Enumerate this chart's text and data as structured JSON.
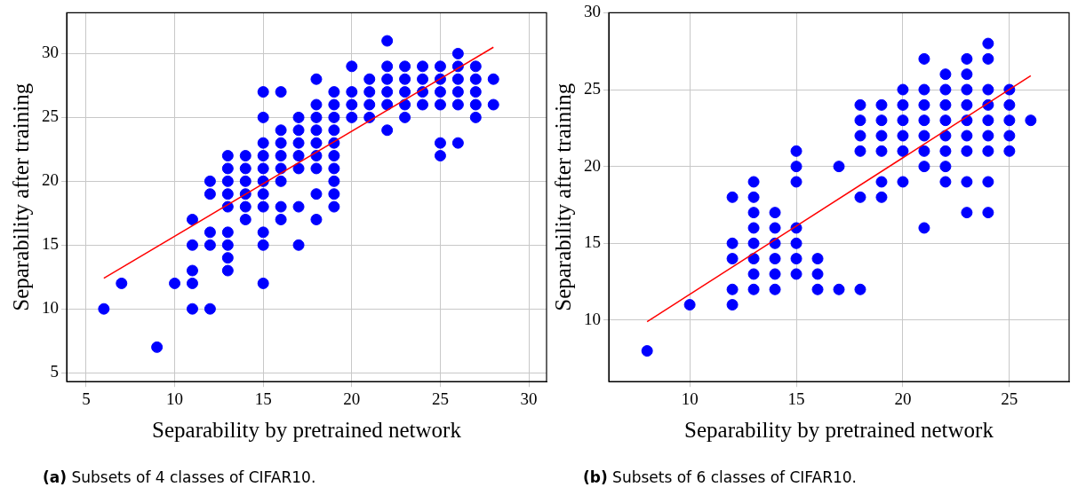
{
  "chart_data": [
    {
      "type": "scatter",
      "xlabel": "Separability by pretrained network",
      "ylabel": "Separability after training",
      "xlim": [
        3.9,
        31
      ],
      "ylim": [
        4.3,
        33.2
      ],
      "xticks": [
        5,
        10,
        15,
        20,
        25,
        30
      ],
      "yticks": [
        5,
        10,
        15,
        20,
        25,
        30
      ],
      "grid": true,
      "marker": "circle",
      "annotations": [
        "(a) Subsets of 4 classes of CIFAR10."
      ],
      "series": [
        {
          "type": "scatter",
          "color": "#0000ff",
          "x": [
            6,
            7,
            9,
            10,
            11,
            11,
            11,
            11,
            11,
            12,
            12,
            12,
            12,
            12,
            13,
            13,
            13,
            13,
            13,
            13,
            13,
            13,
            13,
            14,
            14,
            14,
            14,
            14,
            14,
            15,
            15,
            15,
            15,
            15,
            15,
            15,
            15,
            15,
            15,
            15,
            16,
            16,
            16,
            16,
            16,
            16,
            16,
            16,
            17,
            17,
            17,
            17,
            17,
            17,
            17,
            18,
            18,
            18,
            18,
            18,
            18,
            18,
            18,
            18,
            19,
            19,
            19,
            19,
            19,
            19,
            19,
            19,
            19,
            19,
            20,
            20,
            20,
            20,
            21,
            21,
            21,
            21,
            22,
            22,
            22,
            22,
            22,
            22,
            23,
            23,
            23,
            23,
            23,
            24,
            24,
            24,
            24,
            25,
            25,
            25,
            25,
            25,
            25,
            26,
            26,
            26,
            26,
            26,
            26,
            27,
            27,
            27,
            27,
            27,
            28,
            28
          ],
          "values": [
            10,
            12,
            7,
            12,
            17,
            15,
            13,
            12,
            10,
            20,
            19,
            16,
            15,
            10,
            22,
            21,
            20,
            19,
            18,
            16,
            15,
            14,
            13,
            22,
            21,
            20,
            19,
            18,
            17,
            27,
            25,
            23,
            22,
            21,
            20,
            19,
            18,
            16,
            15,
            12,
            27,
            24,
            23,
            22,
            21,
            20,
            18,
            17,
            25,
            24,
            23,
            22,
            21,
            18,
            15,
            28,
            26,
            25,
            24,
            23,
            22,
            21,
            19,
            17,
            27,
            26,
            25,
            24,
            23,
            22,
            21,
            20,
            19,
            18,
            29,
            27,
            26,
            25,
            28,
            27,
            26,
            25,
            31,
            29,
            28,
            27,
            26,
            24,
            29,
            28,
            27,
            26,
            25,
            29,
            28,
            27,
            26,
            29,
            28,
            27,
            26,
            23,
            22,
            30,
            29,
            28,
            27,
            26,
            23,
            29,
            28,
            27,
            26,
            25,
            28,
            26
          ]
        },
        {
          "type": "line",
          "color": "#ff0000",
          "marker": "none",
          "x": [
            6,
            28
          ],
          "values": [
            12.4,
            30.5
          ]
        }
      ]
    },
    {
      "type": "scatter",
      "xlabel": "Separability by pretrained network",
      "ylabel": "Separability after training",
      "xlim": [
        6.2,
        27.8
      ],
      "ylim": [
        6,
        30
      ],
      "xticks": [
        10,
        15,
        20,
        25
      ],
      "yticks": [
        10,
        15,
        20,
        25,
        30
      ],
      "grid": true,
      "marker": "circle",
      "annotations": [
        "(b) Subsets of 6 classes of CIFAR10."
      ],
      "series": [
        {
          "type": "scatter",
          "color": "#0000ff",
          "x": [
            8,
            10,
            12,
            12,
            12,
            12,
            12,
            13,
            13,
            13,
            13,
            13,
            13,
            13,
            13,
            14,
            14,
            14,
            14,
            14,
            14,
            15,
            15,
            15,
            15,
            15,
            15,
            15,
            16,
            16,
            16,
            17,
            17,
            18,
            18,
            18,
            18,
            18,
            18,
            19,
            19,
            19,
            19,
            19,
            19,
            20,
            20,
            20,
            20,
            20,
            20,
            21,
            21,
            21,
            21,
            21,
            21,
            21,
            21,
            22,
            22,
            22,
            22,
            22,
            22,
            22,
            22,
            23,
            23,
            23,
            23,
            23,
            23,
            23,
            23,
            23,
            24,
            24,
            24,
            24,
            24,
            24,
            24,
            24,
            24,
            25,
            25,
            25,
            25,
            25,
            26
          ],
          "values": [
            8,
            11,
            18,
            15,
            14,
            12,
            11,
            19,
            18,
            17,
            16,
            15,
            14,
            13,
            12,
            17,
            16,
            15,
            14,
            13,
            12,
            21,
            20,
            19,
            16,
            15,
            14,
            13,
            14,
            13,
            12,
            20,
            12,
            24,
            23,
            22,
            21,
            18,
            12,
            24,
            23,
            22,
            21,
            19,
            18,
            25,
            24,
            23,
            22,
            21,
            19,
            27,
            25,
            24,
            23,
            22,
            21,
            20,
            16,
            26,
            25,
            24,
            23,
            22,
            21,
            20,
            19,
            27,
            26,
            25,
            24,
            23,
            22,
            21,
            19,
            17,
            28,
            27,
            25,
            24,
            23,
            22,
            21,
            19,
            17,
            25,
            24,
            23,
            22,
            21,
            23
          ]
        },
        {
          "type": "line",
          "color": "#ff0000",
          "marker": "none",
          "x": [
            8,
            26
          ],
          "values": [
            9.9,
            25.9
          ]
        }
      ]
    }
  ]
}
